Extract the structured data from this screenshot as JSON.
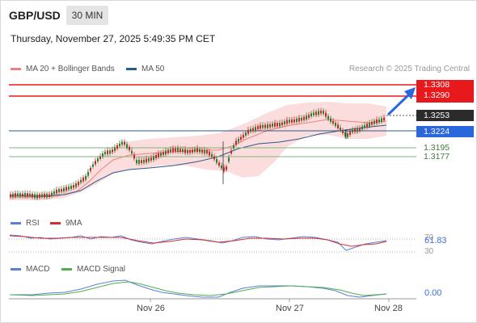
{
  "header": {
    "symbol": "GBP/USD",
    "timeframe": "30 MIN",
    "datetime": "Thursday, November 27, 2025 5:49:35 PM CET"
  },
  "legend": {
    "ma20_bb": "MA 20 + Bollinger Bands",
    "ma50": "MA 50",
    "research": "Research © 2025 Trading Central",
    "colors": {
      "ma20": "#f08080",
      "ma50": "#2b5a8c"
    }
  },
  "levels": {
    "r2": "1.3308",
    "r1": "1.3290",
    "last": "1.3253",
    "pivot": "1.3224",
    "s1": "1.3195",
    "s2": "1.3177"
  },
  "rsi": {
    "label": "RSI",
    "ma_label": "9MA",
    "value": "61.83",
    "upper": "70",
    "lower": "30"
  },
  "macd": {
    "label": "MACD",
    "signal_label": "MACD Signal",
    "value": "0.00"
  },
  "xaxis": [
    "Nov 26",
    "Nov 27",
    "Nov 28"
  ],
  "colors": {
    "resistance": "#e8191c",
    "pivot": "#2a66dc",
    "support": "#7fb77f",
    "up_candle": "#2e7d32",
    "down_candle": "#c62828",
    "rsi": "#5b7fd6",
    "rsi_ma": "#d23030",
    "macd": "#5b7fd6",
    "macd_signal": "#4caf50"
  },
  "chart_data": {
    "type": "candlestick",
    "symbol": "GBP/USD",
    "interval": "30 MIN",
    "x": [
      "Nov 26",
      "Nov 27",
      "Nov 28"
    ],
    "price_levels": [
      1.3308,
      1.329,
      1.3253,
      1.3224,
      1.3195,
      1.3177
    ],
    "rsi_last": 61.83,
    "rsi_bands": [
      30,
      70
    ],
    "macd_last": 0.0
  }
}
